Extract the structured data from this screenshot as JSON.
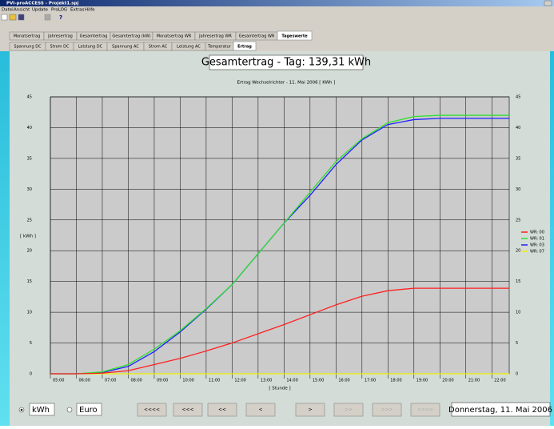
{
  "window": {
    "title": "PVI-proACCESS - Projekt1.spj"
  },
  "menu": [
    "Datei",
    "Ansicht",
    "Update",
    "ProLOG",
    "Extras",
    "Hilfe"
  ],
  "tabs_top": [
    "Monatsertrag",
    "Jahresertrag",
    "Gesamtertrag",
    "Gesamtertrag (kW)",
    "Monatsertrag WR",
    "Jahresertrag WR",
    "Gesamtertrag WR",
    "Tageswerte"
  ],
  "tabs_sub": [
    "Spannung DC",
    "Strom DC",
    "Leistung DC",
    "Spannung AC",
    "Strom AC",
    "Leistung AC",
    "Temperatur",
    "Ertrag"
  ],
  "chart_data": {
    "type": "line",
    "title": "Gesamtertrag - Tag: 139,31 kWh",
    "subtitle": "Ertrag Wechselrichter - 11. Mai 2006 [ KWh ]",
    "y_label": "[ kWh ]",
    "x_label": "[ Stunde ]",
    "x": [
      5,
      6,
      7,
      8,
      9,
      10,
      11,
      12,
      13,
      14,
      15,
      16,
      17,
      18,
      19,
      20,
      21,
      22,
      22.67
    ],
    "series": [
      {
        "name": "WR: 00",
        "color": "#ff2020",
        "values": [
          0,
          0,
          0.1,
          0.5,
          1.5,
          2.5,
          3.7,
          5.0,
          6.5,
          8.0,
          9.6,
          11.2,
          12.6,
          13.5,
          13.9,
          13.9,
          13.9,
          13.9,
          13.9
        ]
      },
      {
        "name": "WR: 01",
        "color": "#30e030",
        "values": [
          0,
          0,
          0.3,
          1.5,
          4.0,
          7.0,
          10.6,
          14.5,
          19.5,
          24.5,
          29.5,
          34.5,
          38.2,
          40.8,
          41.8,
          42,
          42,
          42,
          42
        ]
      },
      {
        "name": "WR: 03",
        "color": "#2020ff",
        "values": [
          0,
          0,
          0.2,
          1.2,
          3.6,
          6.8,
          10.5,
          14.5,
          19.5,
          24.5,
          29.0,
          34.0,
          38.0,
          40.5,
          41.3,
          41.5,
          41.5,
          41.5,
          41.5
        ]
      },
      {
        "name": "WR: 07",
        "color": "#f0f000",
        "values": [
          0,
          0,
          0,
          0,
          0,
          0,
          0,
          0,
          0,
          0,
          0,
          0,
          0,
          0,
          0,
          0,
          0,
          0,
          0
        ]
      }
    ],
    "xlim": [
      5,
      22.67
    ],
    "xticks": [
      {
        "value": 5,
        "label": "05:00"
      },
      {
        "value": 6,
        "label": "06:00"
      },
      {
        "value": 7,
        "label": "07:00"
      },
      {
        "value": 8,
        "label": "08:00"
      },
      {
        "value": 9,
        "label": "09:00"
      },
      {
        "value": 10,
        "label": "10:00"
      },
      {
        "value": 11,
        "label": "11:00"
      },
      {
        "value": 12,
        "label": "12:00"
      },
      {
        "value": 13,
        "label": "13:00"
      },
      {
        "value": 14,
        "label": "14:00"
      },
      {
        "value": 15,
        "label": "15:00"
      },
      {
        "value": 16,
        "label": "16:00"
      },
      {
        "value": 17,
        "label": "17:00"
      },
      {
        "value": 18,
        "label": "18:00"
      },
      {
        "value": 19,
        "label": "19:00"
      },
      {
        "value": 20,
        "label": "20:00"
      },
      {
        "value": 21,
        "label": "21:00"
      },
      {
        "value": 22,
        "label": "22:00"
      }
    ],
    "ylim": [
      0,
      45
    ],
    "yticks": [
      0,
      5,
      10,
      15,
      20,
      25,
      30,
      35,
      40,
      45
    ],
    "grid": true,
    "legend": "right"
  },
  "units": [
    "kWh",
    "Euro"
  ],
  "nav": [
    "<<<<",
    "<<<",
    "<<",
    "<",
    ">",
    ">>",
    ">>>",
    ">>>>"
  ],
  "date": "Donnerstag, 11. Mai 2006"
}
